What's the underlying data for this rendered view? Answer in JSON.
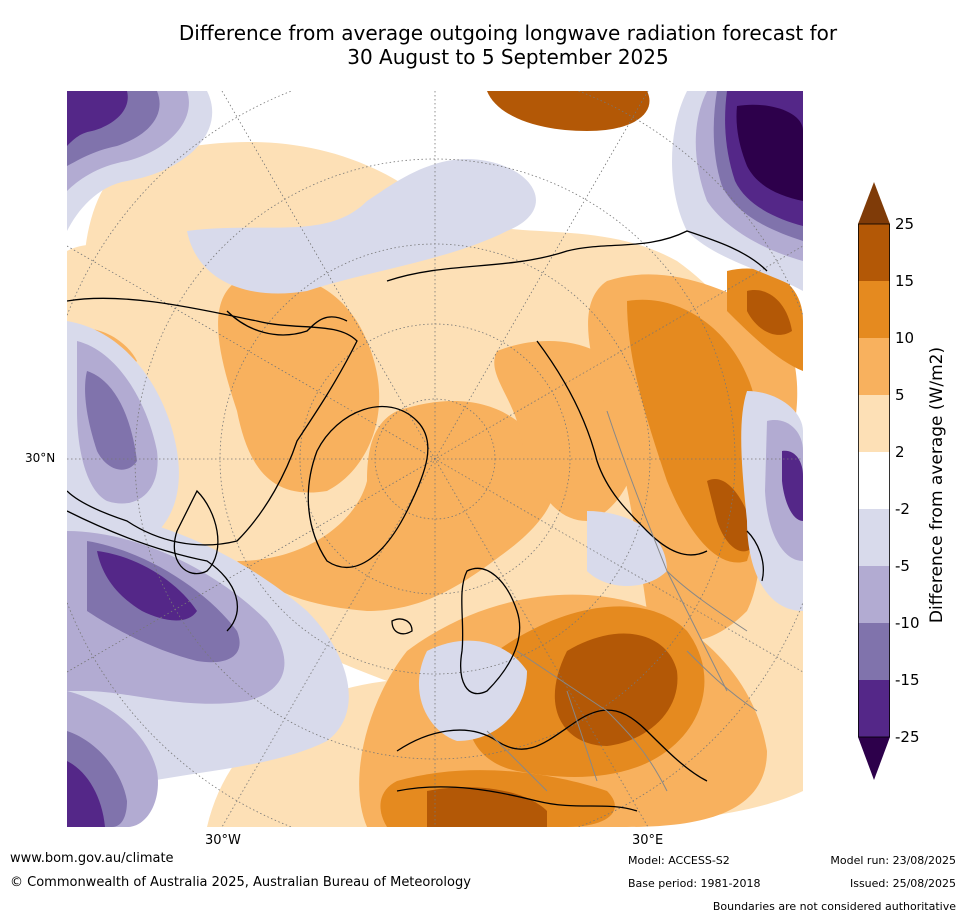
{
  "title_line1": "Difference from average outgoing longwave radiation forecast for",
  "title_line2": "30 August to 5 September 2025",
  "map": {
    "lat_label": "30°N",
    "lon_labels": [
      "30°W",
      "30°E"
    ],
    "palette": {
      "plus_2_5": "#fde0b6",
      "plus_5_10": "#f8b15e",
      "plus_10_15": "#e58a1f",
      "plus_15_25": "#b35806",
      "above_25": "#7f3b08",
      "minus_2_5": "#d8daeb",
      "minus_5_10": "#b2abd2",
      "minus_10_15": "#8073ac",
      "minus_15_25": "#542788",
      "below_minus_25": "#2d004b",
      "near_zero": "#ffffff"
    }
  },
  "colorbar": {
    "title": "Difference from average (W/m2)",
    "ticks": [
      "25",
      "15",
      "10",
      "5",
      "2",
      "-2",
      "-5",
      "-10",
      "-15",
      "-25"
    ]
  },
  "footer": {
    "website": "www.bom.gov.au/climate",
    "copyright": "© Commonwealth of Australia 2025, Australian Bureau of Meteorology",
    "model": "Model: ACCESS-S2",
    "base_period": "Base period: 1981-2018",
    "model_run": "Model run: 23/08/2025",
    "issued": "Issued: 25/08/2025",
    "disclaimer": "Boundaries are not considered authoritative"
  }
}
